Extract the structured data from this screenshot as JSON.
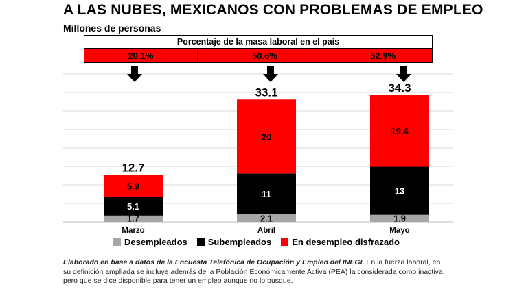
{
  "header": {
    "title": "A LAS NUBES, MEXICANOS CON PROBLEMAS DE EMPLEO",
    "subtitle": "Millones de personas",
    "pct_title": "Porcentaje de la masa laboral en el país"
  },
  "chart_data": {
    "type": "bar",
    "stacked": true,
    "categories": [
      "Marzo",
      "Abril",
      "Mayo"
    ],
    "series": [
      {
        "name": "Desempleados",
        "values": [
          1.7,
          2.1,
          1.9
        ],
        "color": "#a6a6a6",
        "labels": [
          "1.7",
          "2.1",
          "1.9"
        ]
      },
      {
        "name": "Subempleados",
        "values": [
          5.1,
          11,
          13
        ],
        "color": "#000000",
        "labels": [
          "5.1",
          "11",
          "13"
        ]
      },
      {
        "name": "En desempleo disfrazado",
        "values": [
          5.9,
          20,
          19.4
        ],
        "color": "#ff0000",
        "labels": [
          "5.9",
          "20",
          "19.4"
        ]
      }
    ],
    "totals": [
      "12.7",
      "33.1",
      "34.3"
    ],
    "percentages": [
      "20.1%",
      "50.6%",
      "52.9%"
    ],
    "ylim": [
      0,
      40
    ],
    "grid": true,
    "legend_position": "bottom"
  },
  "footnote": {
    "lead": "Elaborado en base a datos de la Encuesta Telefónica de Ocupación y Empleo del INEGI.",
    "body": " En la fuerza laboral, en su definición ampliada se incluye además de la Población Económicamente Activa (PEA) la considerada como inactiva, pero que se dice disponible para tener un empleo aunque no lo busque."
  },
  "colors": {
    "red": "#ff0000",
    "black": "#000000",
    "gray": "#a6a6a6",
    "grid": "#d9d9d9"
  }
}
